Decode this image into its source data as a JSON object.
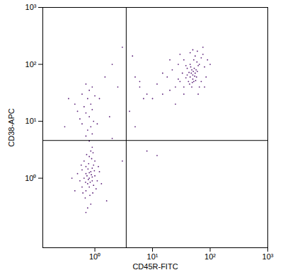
{
  "chart_data": {
    "type": "scatter",
    "x_label": "CD45R-FITC",
    "y_label": "CD38-APC",
    "log": true,
    "color": "#5a1f78",
    "xlim": [
      0.125,
      1000
    ],
    "ylim": [
      0.06,
      1000
    ],
    "xticks": [
      {
        "value": 1,
        "label": "10⁰"
      },
      {
        "value": 10,
        "label": "10¹"
      },
      {
        "value": 100,
        "label": "10²"
      },
      {
        "value": 1000,
        "label": "10³"
      }
    ],
    "yticks": [
      {
        "value": 1,
        "label": "10⁰"
      },
      {
        "value": 10,
        "label": "10¹"
      },
      {
        "value": 100,
        "label": "10²"
      },
      {
        "value": 1000,
        "label": "10³"
      }
    ],
    "quadrant_x": 3.5,
    "quadrant_y": 4.6,
    "x": [
      0.8,
      0.7,
      0.9,
      0.75,
      0.85,
      0.65,
      1.0,
      0.8,
      0.9,
      0.7,
      0.6,
      0.95,
      0.78,
      0.88,
      0.72,
      0.82,
      0.68,
      0.92,
      1.1,
      1.2,
      0.55,
      0.5,
      0.6,
      0.85,
      0.75,
      1.05,
      0.7,
      0.8,
      0.9,
      0.77,
      0.83,
      0.73,
      0.95,
      1.0,
      0.65,
      0.85,
      0.9,
      0.7,
      0.45,
      1.3,
      0.62,
      0.98,
      0.87,
      0.76,
      0.69,
      1.15,
      0.58,
      0.8,
      0.93,
      0.4,
      0.8,
      0.7,
      0.9,
      0.75,
      0.85,
      0.6,
      0.95,
      0.8,
      0.7,
      0.9,
      0.65,
      0.85,
      0.75,
      1.0,
      0.6,
      0.8,
      0.9,
      0.7,
      0.55,
      1.1,
      0.45,
      0.5,
      1.2,
      0.3,
      0.35,
      1.5,
      2,
      3,
      2.5,
      4,
      5,
      6,
      8,
      3,
      2,
      1.8,
      12,
      7,
      4.5,
      1.6,
      45,
      50,
      55,
      40,
      48,
      52,
      58,
      42,
      47,
      53,
      60,
      44,
      50,
      56,
      46,
      62,
      38,
      51,
      49,
      57,
      43,
      54,
      48,
      59,
      52,
      65,
      45,
      70,
      55,
      40,
      30,
      25,
      20,
      35,
      15,
      18,
      22,
      28,
      12,
      10,
      8,
      25,
      35,
      30,
      45,
      60,
      75,
      80,
      85,
      70,
      90,
      65,
      33,
      28,
      38,
      75,
      50,
      20,
      15,
      100,
      6,
      5,
      35,
      62,
      80
    ],
    "y": [
      1.0,
      1.2,
      0.9,
      0.8,
      1.3,
      1.0,
      1.1,
      0.7,
      1.5,
      0.6,
      1.4,
      0.75,
      1.8,
      2.2,
      2.6,
      0.5,
      0.45,
      0.55,
      0.9,
      1.3,
      0.9,
      1.2,
      0.7,
      0.35,
      0.3,
      0.65,
      1.6,
      1.25,
      1.05,
      0.95,
      0.85,
      1.1,
      1.7,
      2.0,
      2.0,
      3.0,
      3.5,
      0.25,
      0.6,
      0.8,
      0.55,
      1.35,
      1.15,
      1.45,
      0.85,
      1.6,
      1.7,
      2.4,
      2.8,
      1.0,
      4.5,
      5.5,
      6,
      7,
      8,
      9,
      10,
      12,
      14,
      16,
      18,
      20,
      25,
      28,
      30,
      35,
      40,
      45,
      11,
      9,
      20,
      15,
      25,
      8,
      25,
      60,
      100,
      200,
      40,
      15,
      8,
      50,
      3,
      2,
      5,
      12,
      2.5,
      25,
      140,
      0.4,
      60,
      55,
      70,
      65,
      80,
      50,
      60,
      50,
      70,
      85,
      75,
      45,
      65,
      52,
      90,
      95,
      58,
      75,
      48,
      80,
      72,
      62,
      40,
      110,
      120,
      100,
      100,
      130,
      140,
      85,
      50,
      40,
      35,
      40,
      30,
      60,
      80,
      100,
      45,
      25,
      30,
      20,
      120,
      150,
      160,
      170,
      150,
      90,
      60,
      50,
      120,
      40,
      70,
      55,
      95,
      200,
      180,
      120,
      70,
      100,
      40,
      60,
      30,
      30,
      40
    ]
  }
}
